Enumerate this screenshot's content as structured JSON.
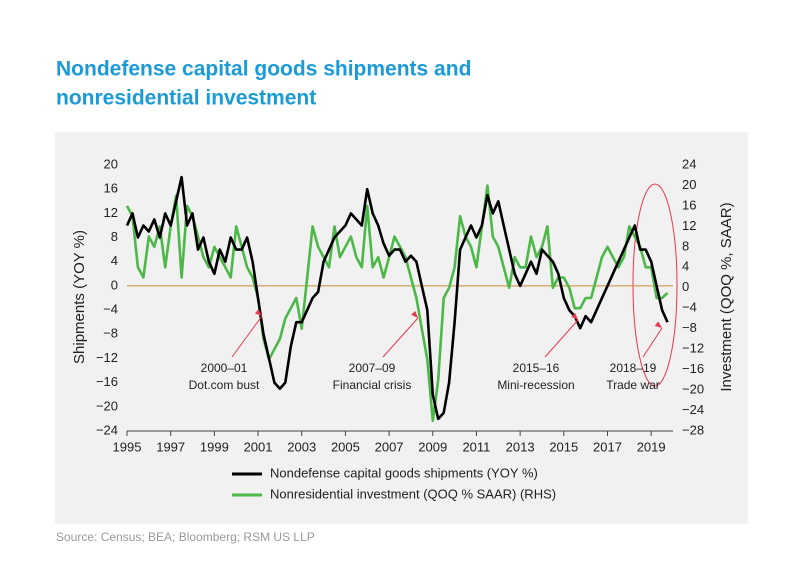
{
  "chart_data": {
    "type": "line",
    "title": "Nondefense capital goods shipments and",
    "subtitle": "nonresidential investment",
    "y_label": "Shipments (YOY %)",
    "y2_label": "Investment (QOQ %, SAAR)",
    "source": "Source: Census; BEA; Bloomberg; RSM US LLP",
    "xlim": [
      1995,
      2020
    ],
    "xticks": [
      1995,
      1997,
      1999,
      2001,
      2003,
      2005,
      2007,
      2009,
      2011,
      2013,
      2015,
      2017,
      2019
    ],
    "ylim": [
      -24,
      20
    ],
    "yticks": [
      {
        "value": -24,
        "label": "−24"
      },
      {
        "value": -20,
        "label": "−20"
      },
      {
        "value": -16,
        "label": "−16"
      },
      {
        "value": -12,
        "label": "−12"
      },
      {
        "value": -8,
        "label": "−8"
      },
      {
        "value": -4,
        "label": "−4"
      },
      0,
      4,
      8,
      12,
      16,
      20
    ],
    "y2lim": [
      -28,
      24
    ],
    "y2ticks": [
      {
        "value": -28,
        "label": "−28"
      },
      {
        "value": -24,
        "label": "−24"
      },
      {
        "value": -20,
        "label": "−20"
      },
      {
        "value": -16,
        "label": "−16"
      },
      {
        "value": -12,
        "label": "−12"
      },
      {
        "value": -8,
        "label": "−8"
      },
      {
        "value": -4,
        "label": "−4"
      },
      0,
      4,
      8,
      12,
      16,
      20,
      24
    ],
    "grid": false,
    "annotations": [
      [
        "2000–01",
        "Dot.com bust"
      ],
      [
        "2007–09",
        "Financial crisis"
      ],
      [
        "2015–16",
        "Mini-recession"
      ],
      [
        "2018–19",
        "Trade war"
      ]
    ],
    "x": [
      1995,
      1995.25,
      1995.5,
      1995.75,
      1996,
      1996.25,
      1996.5,
      1996.75,
      1997,
      1997.25,
      1997.5,
      1997.75,
      1998,
      1998.25,
      1998.5,
      1998.75,
      1999,
      1999.25,
      1999.5,
      1999.75,
      2000,
      2000.25,
      2000.5,
      2000.75,
      2001,
      2001.25,
      2001.5,
      2001.75,
      2002,
      2002.25,
      2002.5,
      2002.75,
      2003,
      2003.25,
      2003.5,
      2003.75,
      2004,
      2004.25,
      2004.5,
      2004.75,
      2005,
      2005.25,
      2005.5,
      2005.75,
      2006,
      2006.25,
      2006.5,
      2006.75,
      2007,
      2007.25,
      2007.5,
      2007.75,
      2008,
      2008.25,
      2008.5,
      2008.75,
      2009,
      2009.25,
      2009.5,
      2009.75,
      2010,
      2010.25,
      2010.5,
      2010.75,
      2011,
      2011.25,
      2011.5,
      2011.75,
      2012,
      2012.25,
      2012.5,
      2012.75,
      2013,
      2013.25,
      2013.5,
      2013.75,
      2014,
      2014.25,
      2014.5,
      2014.75,
      2015,
      2015.25,
      2015.5,
      2015.75,
      2016,
      2016.25,
      2016.5,
      2016.75,
      2017,
      2017.25,
      2017.5,
      2017.75,
      2018,
      2018.25,
      2018.5,
      2018.75,
      2019,
      2019.25,
      2019.5,
      2019.75
    ],
    "series": [
      {
        "name": "Nondefense capital goods shipments (YOY %)",
        "color": "#000000",
        "values": [
          10,
          12,
          8,
          10,
          9,
          11,
          8,
          12,
          10,
          14,
          18,
          10,
          12,
          6,
          8,
          4,
          2,
          6,
          4,
          8,
          6,
          6,
          8,
          4,
          -2,
          -8,
          -12,
          -16,
          -17,
          -16,
          -10,
          -6,
          -6,
          -4,
          -2,
          -1,
          4,
          6,
          8,
          9,
          10,
          12,
          11,
          10,
          16,
          12,
          10,
          7,
          5,
          6,
          6,
          4,
          5,
          4,
          0,
          -4,
          -18,
          -22,
          -21,
          -16,
          -6,
          6,
          8,
          10,
          8,
          10,
          15,
          12,
          14,
          10,
          6,
          2,
          0,
          2,
          4,
          2,
          6,
          5,
          4,
          2,
          -2,
          -4,
          -5,
          -7,
          -5,
          -6,
          -4,
          -2,
          0,
          2,
          4,
          6,
          8,
          10,
          6,
          6,
          4,
          0,
          -4,
          -6
        ]
      },
      {
        "name": "Nonresidential investment (QOQ % SAAR) (RHS)",
        "color": "#4cb848",
        "axis": "y2",
        "values": [
          16,
          14,
          4,
          2,
          10,
          8,
          12,
          4,
          12,
          18,
          2,
          16,
          14,
          10,
          6,
          4,
          8,
          6,
          4,
          2,
          12,
          8,
          4,
          2,
          -2,
          -10,
          -14,
          -12,
          -10,
          -6,
          -4,
          -2,
          -8,
          2,
          12,
          8,
          6,
          4,
          12,
          6,
          8,
          10,
          6,
          4,
          16,
          4,
          6,
          2,
          6,
          10,
          8,
          6,
          2,
          -2,
          -8,
          -14,
          -26,
          -18,
          -2,
          0,
          4,
          14,
          10,
          8,
          4,
          12,
          20,
          10,
          8,
          4,
          0,
          6,
          4,
          4,
          10,
          6,
          8,
          12,
          0,
          2,
          2,
          0,
          -4,
          -4,
          -2,
          -2,
          2,
          6,
          8,
          6,
          4,
          6,
          12,
          10,
          8,
          4,
          4,
          -2,
          -2,
          -1
        ]
      }
    ]
  }
}
